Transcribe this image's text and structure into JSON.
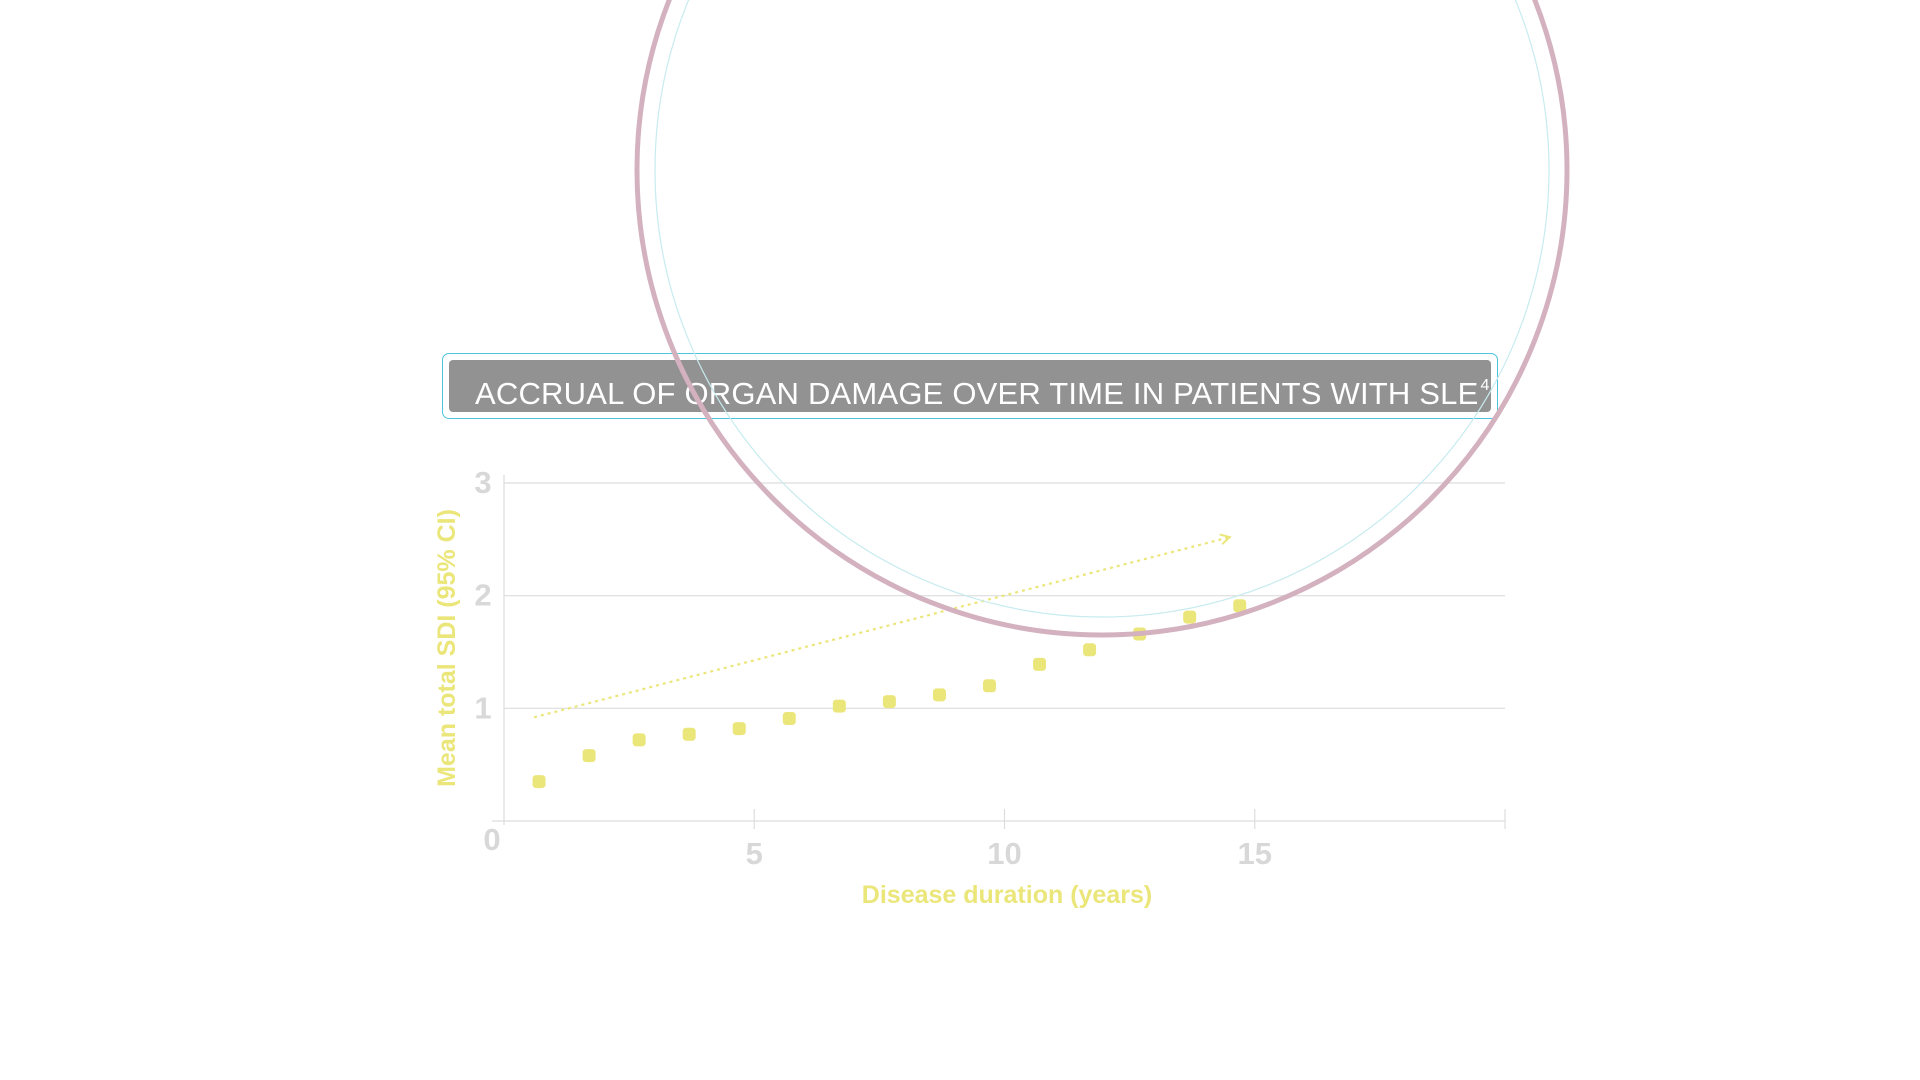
{
  "chart_data": {
    "type": "scatter",
    "title": "ACCRUAL OF ORGAN DAMAGE OVER TIME IN PATIENTS WITH SLE",
    "title_superscript": "4",
    "xlabel": "Disease duration (years)",
    "ylabel": "Mean total SDI (95% CI)",
    "xlim": [
      0,
      20
    ],
    "ylim": [
      0,
      3
    ],
    "x_ticks": [
      "0",
      "5",
      "10",
      "15"
    ],
    "y_ticks": [
      "1",
      "2",
      "3"
    ],
    "grid": true,
    "points": [
      {
        "x": 0.7,
        "y": 0.35
      },
      {
        "x": 1.7,
        "y": 0.58
      },
      {
        "x": 2.7,
        "y": 0.72
      },
      {
        "x": 3.7,
        "y": 0.77
      },
      {
        "x": 4.7,
        "y": 0.82
      },
      {
        "x": 5.7,
        "y": 0.91
      },
      {
        "x": 6.7,
        "y": 1.02
      },
      {
        "x": 7.7,
        "y": 1.06
      },
      {
        "x": 8.7,
        "y": 1.12
      },
      {
        "x": 9.7,
        "y": 1.2
      },
      {
        "x": 10.7,
        "y": 1.39
      },
      {
        "x": 11.7,
        "y": 1.52
      },
      {
        "x": 12.7,
        "y": 1.66
      },
      {
        "x": 13.7,
        "y": 1.81
      },
      {
        "x": 14.7,
        "y": 1.91
      }
    ],
    "trend_arrow": {
      "x0": 0.6,
      "y0": 0.92,
      "x1": 14.5,
      "y1": 2.52
    },
    "colors": {
      "points": "#ebe67a",
      "axis_title": "#ebe67a",
      "tick_labels": "#d8d8d8",
      "grid": "#dddddd",
      "title_bg": "#929292",
      "title_border": "#4ec3dd",
      "circle_outer": "#d4b1be",
      "circle_inner": "#c7ebef"
    }
  }
}
